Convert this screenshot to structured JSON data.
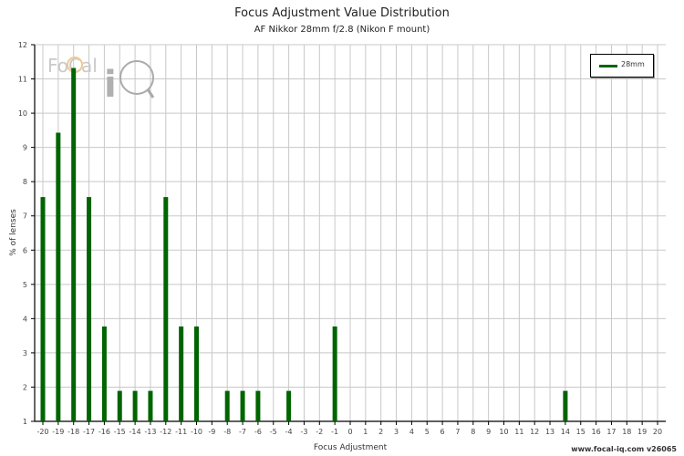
{
  "header": {
    "title": "Focus Adjustment Value Distribution",
    "subtitle": "AF Nikkor 28mm f/2.8 (Nikon F mount)"
  },
  "legend": {
    "label": "28mm",
    "color": "#006400"
  },
  "credit": "www.focal-iq.com  v26065",
  "watermark": {
    "text": "FoCal iQ"
  },
  "colors": {
    "bar": "#006400",
    "grid": "#c8c8c8",
    "axis": "#000000"
  },
  "chart_data": {
    "type": "bar",
    "title": "Focus Adjustment Value Distribution",
    "subtitle": "AF Nikkor 28mm f/2.8 (Nikon F mount)",
    "xlabel": "Focus Adjustment",
    "ylabel": "% of lenses",
    "ylim": [
      1,
      12
    ],
    "xlim": [
      -20,
      20
    ],
    "grid": true,
    "legend_position": "top-right",
    "yticks": [
      1,
      2,
      3,
      4,
      5,
      6,
      7,
      8,
      9,
      10,
      11,
      12
    ],
    "categories": [
      -20,
      -19,
      -18,
      -17,
      -16,
      -15,
      -14,
      -13,
      -12,
      -11,
      -10,
      -9,
      -8,
      -7,
      -6,
      -5,
      -4,
      -3,
      -2,
      -1,
      0,
      1,
      2,
      3,
      4,
      5,
      6,
      7,
      8,
      9,
      10,
      11,
      12,
      13,
      14,
      15,
      16,
      17,
      18,
      19,
      20
    ],
    "series": [
      {
        "name": "28mm",
        "values": [
          7.55,
          9.43,
          11.32,
          7.55,
          3.77,
          1.89,
          1.89,
          1.89,
          7.55,
          3.77,
          3.77,
          0,
          1.89,
          1.89,
          1.89,
          0,
          1.89,
          0,
          0,
          3.77,
          0,
          0,
          0,
          0,
          0,
          0,
          0,
          0,
          0,
          0,
          0,
          0,
          0,
          0,
          1.89,
          0,
          0,
          0,
          0,
          0,
          0
        ]
      }
    ]
  }
}
